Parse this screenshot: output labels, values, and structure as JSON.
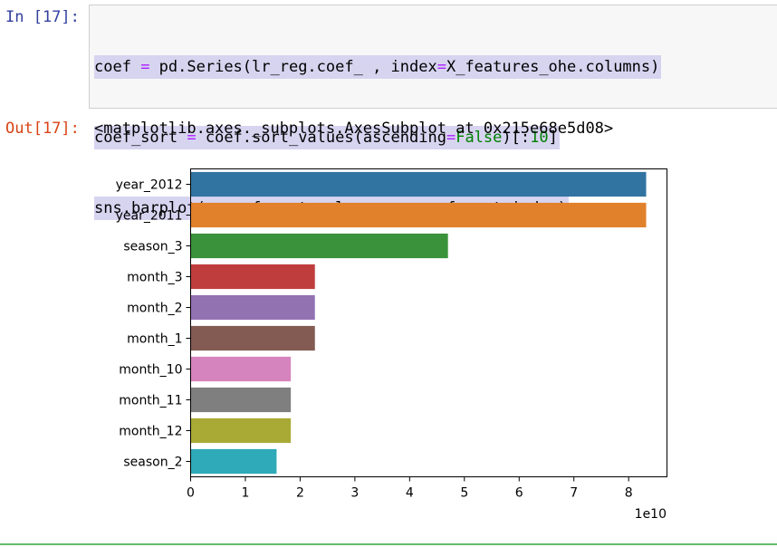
{
  "cell": {
    "in_prompt": "In [17]:",
    "out_prompt": "Out[17]:",
    "code_lines": [
      "coef = pd.Series(lr_reg.coef_ , index=X_features_ohe.columns)",
      "coef_sort = coef.sort_values(ascending=False)[:10]",
      "sns.barplot(x=coef_sort.values , y=coef_sort.index)"
    ],
    "output_text": "<matplotlib.axes._subplots.AxesSubplot at 0x215e68e5d08>"
  },
  "chart_data": {
    "type": "bar",
    "orientation": "horizontal",
    "categories": [
      "year_2012",
      "year_2011",
      "season_3",
      "month_3",
      "month_2",
      "month_1",
      "month_10",
      "month_11",
      "month_12",
      "season_2"
    ],
    "values": [
      8.32,
      8.32,
      4.7,
      2.27,
      2.27,
      2.27,
      1.83,
      1.83,
      1.83,
      1.57
    ],
    "colors": [
      "#3274a1",
      "#e1812c",
      "#3a923a",
      "#c03d3e",
      "#9372b2",
      "#845b53",
      "#d684bd",
      "#7f7f7f",
      "#a9aa35",
      "#2eaab8"
    ],
    "xlim": [
      0,
      8.7
    ],
    "xticks": [
      0,
      1,
      2,
      3,
      4,
      5,
      6,
      7,
      8
    ],
    "x_offset_label": "1e10",
    "grid": false
  }
}
